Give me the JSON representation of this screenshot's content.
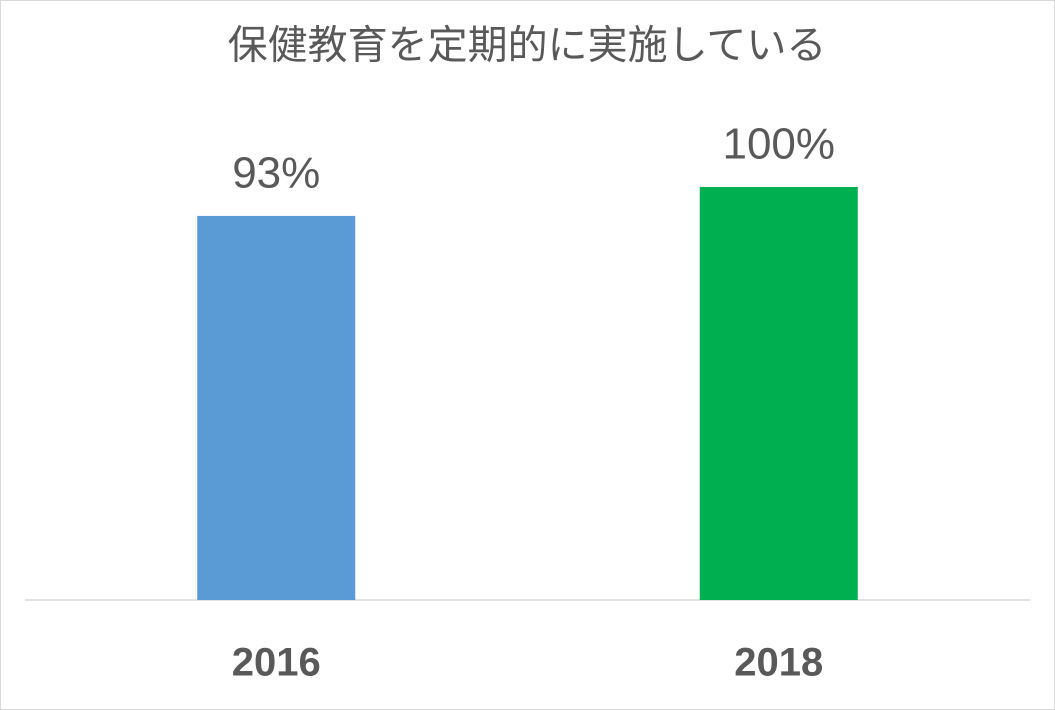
{
  "chart_data": {
    "type": "bar",
    "title": "保健教育を定期的に実施している",
    "categories": [
      "2016",
      "2018"
    ],
    "values": [
      93,
      100
    ],
    "value_labels": [
      "93%",
      "100%"
    ],
    "colors": [
      "#5b9bd5",
      "#00b050"
    ],
    "ylim": [
      0,
      100
    ]
  }
}
